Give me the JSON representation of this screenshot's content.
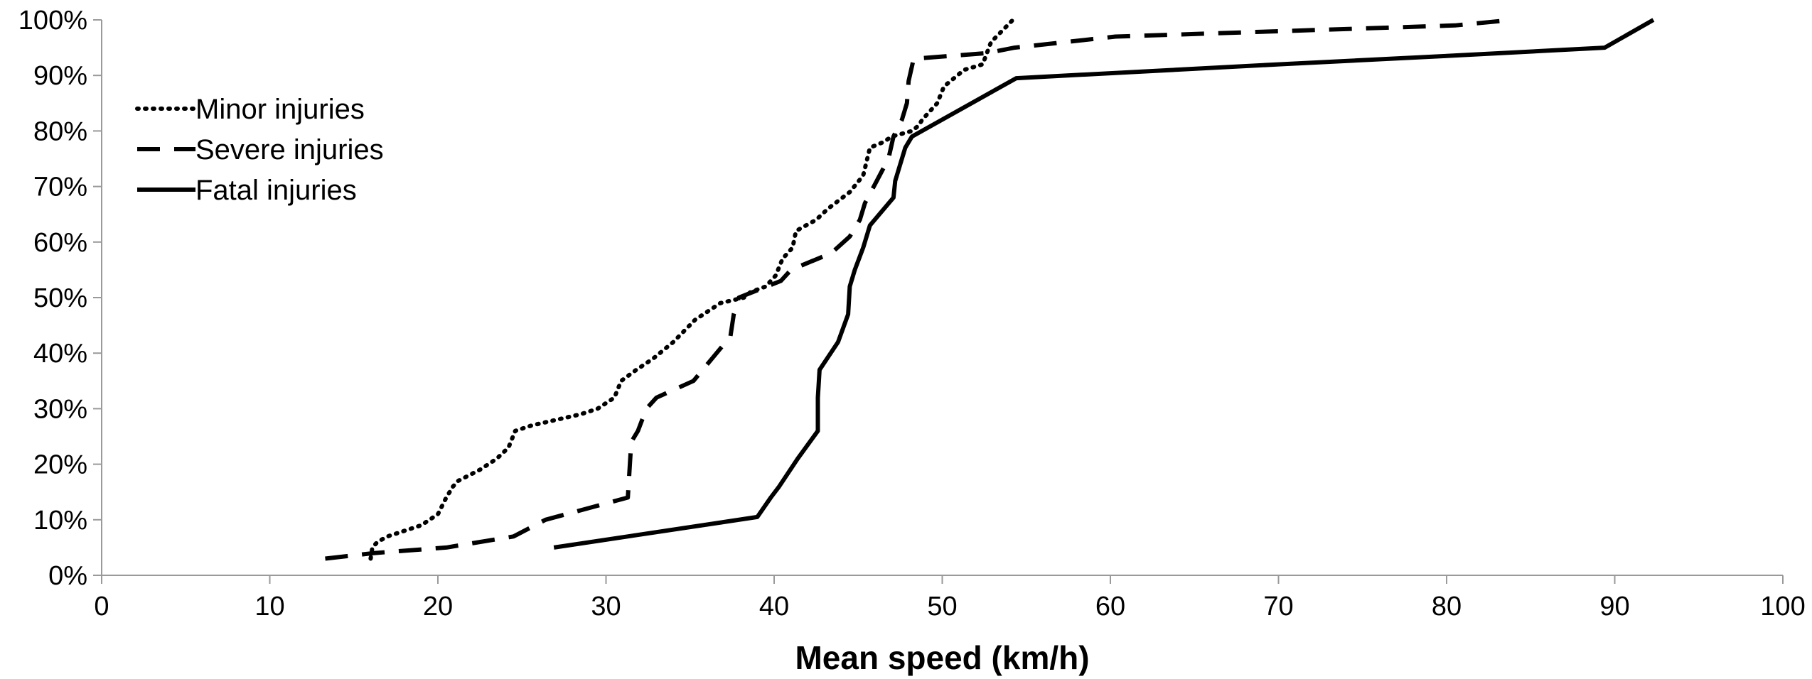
{
  "chart_data": {
    "type": "line",
    "title": "",
    "xlabel": "Mean speed (km/h)",
    "ylabel": "",
    "xlim": [
      0,
      100
    ],
    "ylim": [
      0,
      100
    ],
    "x_ticks": [
      0,
      10,
      20,
      30,
      40,
      50,
      60,
      70,
      80,
      90,
      100
    ],
    "y_ticks": [
      0,
      10,
      20,
      30,
      40,
      50,
      60,
      70,
      80,
      90,
      100
    ],
    "x_tick_labels": [
      "0",
      "10",
      "20",
      "30",
      "40",
      "50",
      "60",
      "70",
      "80",
      "90",
      "100"
    ],
    "y_tick_labels": [
      "0%",
      "10%",
      "20%",
      "30%",
      "40%",
      "50%",
      "60%",
      "70%",
      "80%",
      "90%",
      "100%"
    ],
    "grid": false,
    "legend_position": "top-left",
    "series": [
      {
        "name": "Minor injuries",
        "style": "dotted",
        "color": "#000000",
        "x": [
          16.0,
          16.1,
          16.4,
          17.0,
          19.0,
          20.0,
          20.5,
          20.9,
          21.2,
          22.5,
          23.5,
          24.2,
          24.6,
          25.6,
          28.5,
          29.5,
          30.5,
          30.9,
          31.8,
          32.8,
          34.0,
          35.3,
          36.8,
          38.2,
          38.6,
          39.5,
          40.1,
          40.5,
          41.1,
          41.3,
          42.5,
          43.2,
          44.5,
          45.3,
          45.7,
          46.5,
          47.0,
          48.2,
          48.6,
          48.8,
          49.7,
          50.1,
          51.3,
          52.4,
          52.9,
          54.2
        ],
        "y": [
          3,
          5,
          6,
          7,
          9,
          11,
          14,
          16,
          17,
          19,
          21,
          23,
          26,
          27,
          29,
          30,
          32,
          35,
          37,
          39,
          42,
          46,
          49,
          50,
          51,
          52,
          54,
          57,
          59,
          62,
          64,
          66,
          69,
          72,
          77,
          78,
          79,
          80,
          81,
          82,
          85,
          88,
          91,
          92,
          96,
          100
        ]
      },
      {
        "name": "Severe injuries",
        "style": "dashed",
        "color": "#000000",
        "x": [
          13.3,
          16.2,
          20.5,
          24.5,
          26.4,
          31.3,
          31.5,
          31.9,
          32.4,
          33.0,
          35.2,
          36.3,
          37.4,
          37.6,
          37.9,
          40.4,
          41.0,
          43.4,
          44.5,
          45.1,
          45.4,
          46.1,
          46.8,
          47.1,
          47.6,
          47.9,
          48.0,
          48.3,
          52.6,
          54.3,
          60.3,
          70.5,
          80.5,
          83.9
        ],
        "y": [
          3,
          4,
          5,
          7,
          10,
          14,
          24,
          26,
          30,
          32,
          35,
          39,
          43,
          47,
          50,
          53,
          55,
          58,
          61,
          64,
          67,
          71,
          75,
          79,
          82,
          85,
          89,
          93,
          94,
          95,
          97,
          98,
          99,
          100
        ]
      },
      {
        "name": "Fatal injuries",
        "style": "solid",
        "color": "#000000",
        "x": [
          26.9,
          39.0,
          39.8,
          40.3,
          41.4,
          42.6,
          42.6,
          42.7,
          43.8,
          44.4,
          44.5,
          44.8,
          45.3,
          45.7,
          47.1,
          47.2,
          47.5,
          47.8,
          48.2,
          54.4,
          70.0,
          80.0,
          89.4,
          92.3
        ],
        "y": [
          5,
          10.5,
          14,
          16,
          21,
          26,
          32,
          37,
          42,
          47,
          52,
          55,
          59,
          63,
          68,
          71,
          74,
          77,
          79,
          89.5,
          92,
          93.5,
          95,
          100
        ]
      }
    ]
  }
}
